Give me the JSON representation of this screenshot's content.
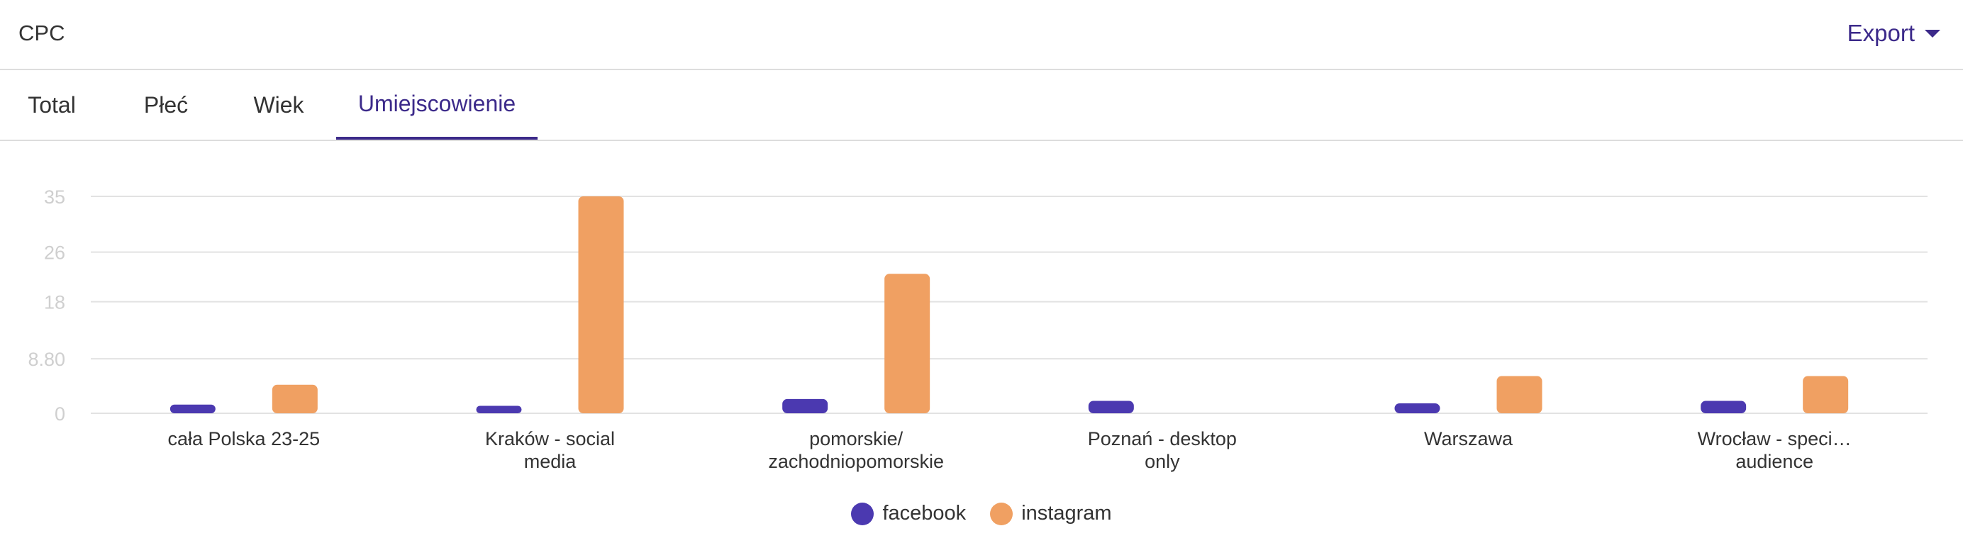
{
  "header": {
    "title": "CPC",
    "export_label": "Export"
  },
  "tabs": [
    {
      "label": "Total",
      "active": false
    },
    {
      "label": "Płeć",
      "active": false
    },
    {
      "label": "Wiek",
      "active": false
    },
    {
      "label": "Umiejscowienie",
      "active": true
    }
  ],
  "colors": {
    "accent": "#3c2a8a",
    "facebook": "#4b39b0",
    "instagram": "#f0a062"
  },
  "chart_data": {
    "type": "bar",
    "categories": [
      [
        "cała Polska 23-25"
      ],
      [
        "Kraków - social",
        "media"
      ],
      [
        "pomorskie/",
        "zachodniopomorskie"
      ],
      [
        "Poznań - desktop",
        "only"
      ],
      [
        "Warszawa"
      ],
      [
        "Wrocław - speci…",
        "audience"
      ]
    ],
    "series": [
      {
        "name": "facebook",
        "color": "#4b39b0",
        "values": [
          1.4,
          1.2,
          2.3,
          2.0,
          1.6,
          2.0
        ]
      },
      {
        "name": "instagram",
        "color": "#f0a062",
        "values": [
          4.6,
          35,
          22.5,
          null,
          6.0,
          6.0
        ]
      }
    ],
    "yticks": [
      "0",
      "8.80",
      "18",
      "26",
      "35"
    ],
    "ytick_values": [
      0,
      8.8,
      18,
      26,
      35
    ],
    "ylim": [
      0,
      35
    ],
    "grid": true,
    "legend": "bottom-center"
  }
}
